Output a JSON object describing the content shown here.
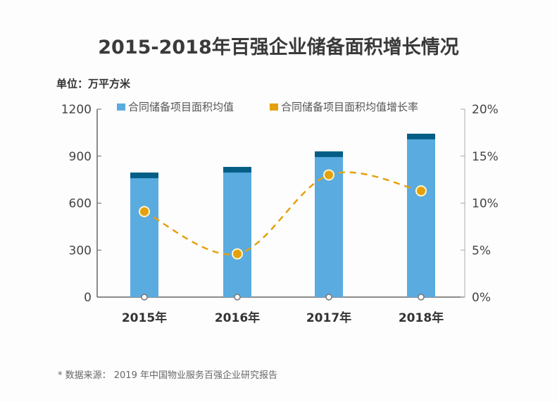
{
  "title": "2015-2018年百强企业储备面积增长情况",
  "unit_label": "单位：万平方米",
  "source": "* 数据来源： 2019 年中国物业服务百强企业研究报告",
  "chart_data": {
    "type": "bar",
    "title": "2015-2018年百强企业储备面积增长情况",
    "categories": [
      "2015年",
      "2016年",
      "2017年",
      "2018年"
    ],
    "series": [
      {
        "name": "合同储备项目面积均值",
        "type": "bar",
        "axis": "left",
        "color": "#5aabe0",
        "cap_color": "#055e85",
        "values": [
          795,
          831,
          930,
          1043
        ]
      },
      {
        "name": "合同储备项目面积均值增长率",
        "type": "line",
        "style": "dashed-smooth",
        "axis": "right",
        "color": "#e5a00d",
        "values": [
          9.1,
          4.6,
          13.0,
          11.3
        ]
      }
    ],
    "ylim": [
      0,
      1200
    ],
    "yticks": [
      "0",
      "300",
      "600",
      "900",
      "1200"
    ],
    "y2lim": [
      0,
      20
    ],
    "y2ticks": [
      "0%",
      "5%",
      "10%",
      "15%",
      "20%"
    ],
    "legend_placement": "top",
    "grid": false
  }
}
